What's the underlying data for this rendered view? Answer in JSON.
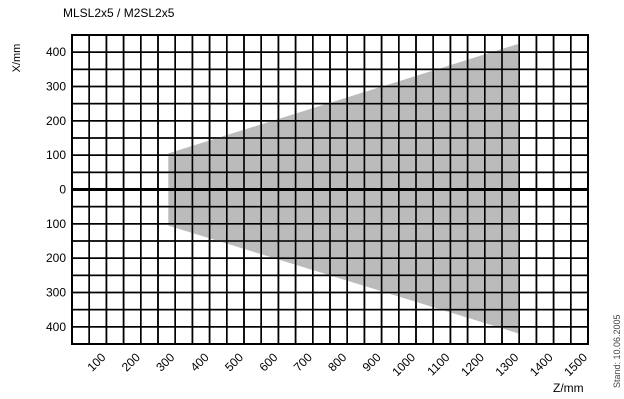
{
  "chart_data": {
    "type": "area",
    "title": "MLSL2x5 / M2SL2x5",
    "xlabel": "Z/mm",
    "ylabel": "X/mm",
    "x_ticks": [
      100,
      200,
      300,
      400,
      500,
      600,
      700,
      800,
      900,
      1000,
      1100,
      1200,
      1300,
      1400,
      1500
    ],
    "y_ticks": [
      {
        "value": 400,
        "label": "400"
      },
      {
        "value": 300,
        "label": "300"
      },
      {
        "value": 200,
        "label": "200"
      },
      {
        "value": 100,
        "label": "100"
      },
      {
        "value": 0,
        "label": "0"
      },
      {
        "value": -100,
        "label": "100"
      },
      {
        "value": -200,
        "label": "200"
      },
      {
        "value": -300,
        "label": "300"
      },
      {
        "value": -400,
        "label": "400"
      }
    ],
    "xlim": [
      0,
      1500
    ],
    "ylim": [
      -450,
      450
    ],
    "grid": true,
    "region": {
      "name": "",
      "color": "#b4b4b4",
      "points": [
        {
          "z": 280,
          "x": 105
        },
        {
          "z": 1300,
          "x": 425
        },
        {
          "z": 1300,
          "x": -420
        },
        {
          "z": 280,
          "x": -105
        }
      ]
    }
  },
  "side_note": "Stand: 10.06.2005"
}
